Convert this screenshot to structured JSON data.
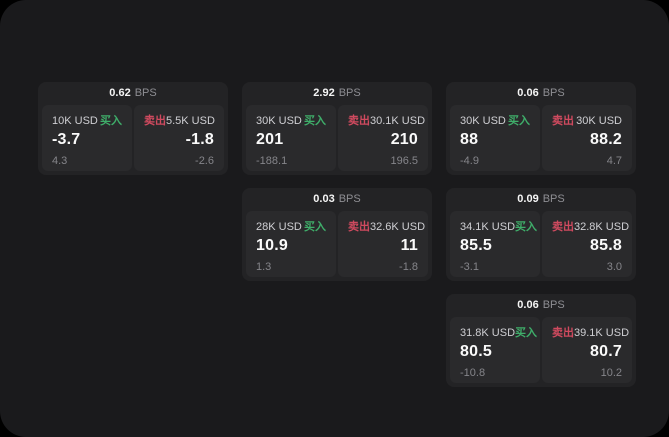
{
  "labels": {
    "bps_unit": "BPS",
    "buy": "买入",
    "sell": "卖出"
  },
  "colors": {
    "page_bg": "#000000",
    "window_bg": "#1a1a1c",
    "card_bg": "#232325",
    "panel_bg": "#2a2a2c",
    "buy": "#3fae6a",
    "sell": "#d04a5f"
  },
  "cards": [
    {
      "bps": "0.62",
      "grid": {
        "row": 1,
        "col": 1
      },
      "buy": {
        "amount": "10K USD",
        "price": "-3.7",
        "delta": "4.3"
      },
      "sell": {
        "amount": "5.5K USD",
        "price": "-1.8",
        "delta": "-2.6"
      }
    },
    {
      "bps": "2.92",
      "grid": {
        "row": 1,
        "col": 2
      },
      "buy": {
        "amount": "30K USD",
        "price": "201",
        "delta": "-188.1"
      },
      "sell": {
        "amount": "30.1K USD",
        "price": "210",
        "delta": "196.5"
      }
    },
    {
      "bps": "0.06",
      "grid": {
        "row": 1,
        "col": 3
      },
      "buy": {
        "amount": "30K USD",
        "price": "88",
        "delta": "-4.9"
      },
      "sell": {
        "amount": "30K USD",
        "price": "88.2",
        "delta": "4.7"
      }
    },
    {
      "bps": "0.03",
      "grid": {
        "row": 2,
        "col": 2
      },
      "buy": {
        "amount": "28K USD",
        "price": "10.9",
        "delta": "1.3"
      },
      "sell": {
        "amount": "32.6K USD",
        "price": "11",
        "delta": "-1.8"
      }
    },
    {
      "bps": "0.09",
      "grid": {
        "row": 2,
        "col": 3
      },
      "buy": {
        "amount": "34.1K USD",
        "price": "85.5",
        "delta": "-3.1"
      },
      "sell": {
        "amount": "32.8K USD",
        "price": "85.8",
        "delta": "3.0"
      }
    },
    {
      "bps": "0.06",
      "grid": {
        "row": 3,
        "col": 3
      },
      "buy": {
        "amount": "31.8K USD",
        "price": "80.5",
        "delta": "-10.8"
      },
      "sell": {
        "amount": "39.1K USD",
        "price": "80.7",
        "delta": "10.2"
      }
    }
  ]
}
